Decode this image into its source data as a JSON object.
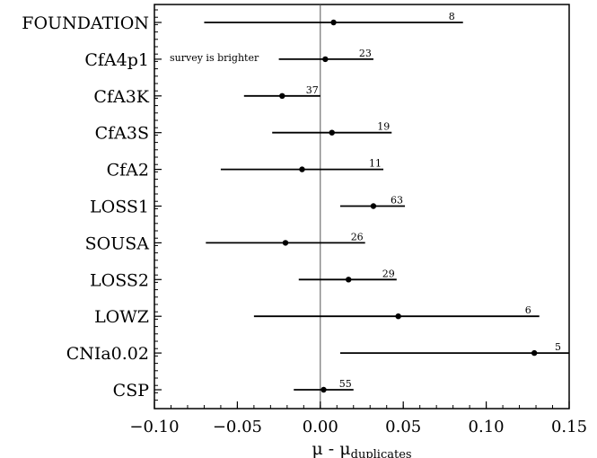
{
  "chart_data": {
    "type": "errorbar",
    "categories": [
      "FOUNDATION",
      "CfA4p1",
      "CfA3K",
      "CfA3S",
      "CfA2",
      "LOSS1",
      "SOUSA",
      "LOSS2",
      "LOWZ",
      "CNIa0.02",
      "CSP"
    ],
    "values": [
      0.008,
      0.003,
      -0.023,
      0.007,
      -0.011,
      0.032,
      -0.021,
      0.017,
      0.047,
      0.129,
      0.002
    ],
    "err_low": [
      -0.07,
      -0.025,
      -0.046,
      -0.029,
      -0.06,
      0.012,
      -0.069,
      -0.013,
      -0.04,
      0.012,
      -0.016
    ],
    "err_high": [
      0.086,
      0.032,
      0.0,
      0.043,
      0.038,
      0.051,
      0.027,
      0.046,
      0.132,
      0.15,
      0.02
    ],
    "counts": [
      "8",
      "23",
      "37",
      "19",
      "11",
      "63",
      "26",
      "29",
      "6",
      "5",
      "55"
    ],
    "xlim": [
      -0.1,
      0.15
    ],
    "xticks": [
      -0.1,
      -0.05,
      0.0,
      0.05,
      0.1,
      0.15
    ],
    "xtick_labels": [
      "−0.10",
      "−0.05",
      "0.00",
      "0.05",
      "0.10",
      "0.15"
    ],
    "xlabel": "μ - μ",
    "xlabel_subscript": "duplicates",
    "annotation": "survey is brighter",
    "reference_line_x": 0.0,
    "grid": false,
    "colors": {
      "marker": "#000000",
      "errorbar": "#000000",
      "reference_line": "#555555"
    }
  }
}
